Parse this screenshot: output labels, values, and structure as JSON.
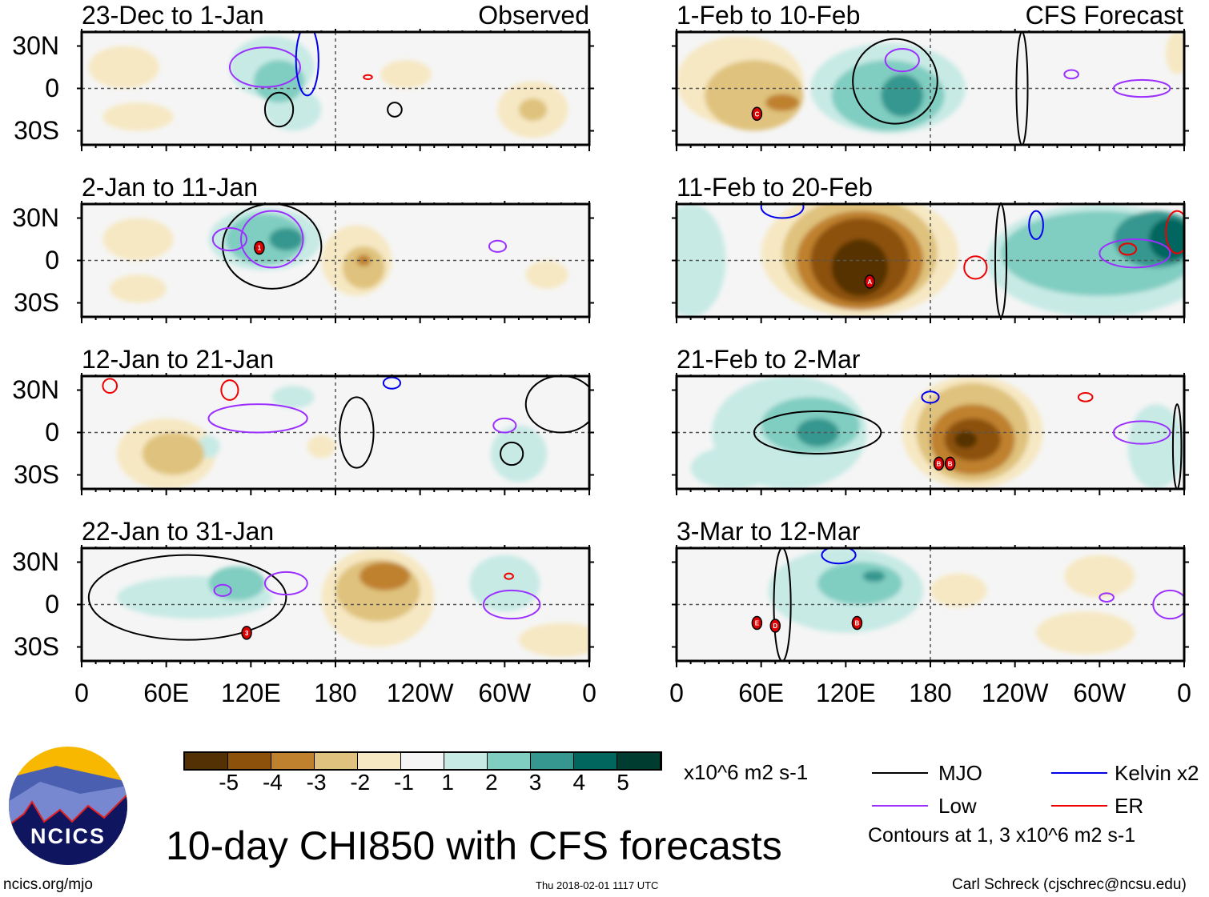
{
  "colors": {
    "levels": [
      "#543005",
      "#8c510a",
      "#bf812d",
      "#dfc27d",
      "#f6e8c3",
      "#f5f5f5",
      "#c7eae5",
      "#80cdc1",
      "#35978f",
      "#01665e",
      "#003c30"
    ],
    "MJO": "#000000",
    "Low": "#9b30ff",
    "Kelvin": "#0000ee",
    "ER": "#ee0000"
  },
  "header": {
    "observed": "Observed",
    "forecast": "CFS Forecast"
  },
  "lat_labels": [
    "30N",
    "0",
    "30S"
  ],
  "lon_labels": [
    "0",
    "60E",
    "120E",
    "180",
    "120W",
    "60W",
    "0"
  ],
  "chart_data": {
    "type": "heatmap",
    "title": "10-day CHI850 with CFS forecasts",
    "units": "x10^6 m2 s-1",
    "colorbar_ticks": [
      "-5",
      "-4",
      "-3",
      "-2",
      "-1",
      "1",
      "2",
      "3",
      "4",
      "5"
    ],
    "xlim": [
      0,
      360
    ],
    "ylim": [
      -40,
      40
    ],
    "panels": [
      {
        "title": "23-Dec to 1-Jan",
        "col": 0,
        "row": 0,
        "blobs": [
          [
            30,
            15,
            25,
            15,
            -1
          ],
          [
            40,
            -20,
            25,
            10,
            -1
          ],
          [
            135,
            15,
            30,
            22,
            1
          ],
          [
            140,
            5,
            18,
            15,
            2
          ],
          [
            150,
            -15,
            20,
            15,
            1
          ],
          [
            230,
            10,
            18,
            10,
            -1
          ],
          [
            320,
            -15,
            25,
            20,
            -1
          ],
          [
            320,
            -15,
            10,
            8,
            -2
          ]
        ],
        "contours": [
          [
            "Low",
            130,
            15,
            25,
            14
          ],
          [
            "Kelvin",
            160,
            20,
            8,
            25
          ],
          [
            "MJO",
            140,
            -15,
            10,
            12
          ],
          [
            "MJO",
            222,
            -15,
            5,
            5
          ],
          [
            "ER",
            203,
            8,
            3,
            1.5
          ]
        ]
      },
      {
        "title": "2-Jan to 11-Jan",
        "col": 0,
        "row": 1,
        "blobs": [
          [
            40,
            15,
            25,
            15,
            -1
          ],
          [
            40,
            -20,
            20,
            10,
            -1
          ],
          [
            130,
            15,
            40,
            22,
            1
          ],
          [
            130,
            15,
            28,
            18,
            2
          ],
          [
            145,
            15,
            12,
            8,
            3
          ],
          [
            195,
            0,
            25,
            25,
            -1
          ],
          [
            200,
            -5,
            15,
            15,
            -2
          ],
          [
            200,
            0,
            5,
            4,
            -3
          ],
          [
            330,
            -10,
            15,
            10,
            -1
          ]
        ],
        "contours": [
          [
            "MJO",
            135,
            10,
            35,
            30
          ],
          [
            "Low",
            105,
            15,
            12,
            8
          ],
          [
            "Low",
            135,
            15,
            22,
            20
          ],
          [
            "Low",
            295,
            10,
            6,
            4
          ]
        ]
      },
      {
        "title": "12-Jan to 21-Jan",
        "col": 0,
        "row": 2,
        "blobs": [
          [
            60,
            -15,
            35,
            25,
            -1
          ],
          [
            65,
            -15,
            22,
            15,
            -2
          ],
          [
            170,
            -10,
            10,
            8,
            -1
          ],
          [
            310,
            -15,
            20,
            20,
            1
          ],
          [
            150,
            25,
            15,
            8,
            1
          ],
          [
            90,
            -10,
            8,
            8,
            1
          ]
        ],
        "contours": [
          [
            "Low",
            125,
            10,
            35,
            10
          ],
          [
            "ER",
            20,
            33,
            5,
            5
          ],
          [
            "ER",
            105,
            30,
            6,
            7
          ],
          [
            "MJO",
            195,
            0,
            12,
            25
          ],
          [
            "Kelvin",
            220,
            35,
            6,
            4
          ],
          [
            "Low",
            300,
            5,
            8,
            5
          ],
          [
            "MJO",
            305,
            -15,
            8,
            8
          ],
          [
            "MJO",
            340,
            20,
            25,
            20
          ]
        ]
      },
      {
        "title": "22-Jan to 31-Jan",
        "col": 0,
        "row": 3,
        "blobs": [
          [
            80,
            5,
            55,
            15,
            1
          ],
          [
            110,
            15,
            20,
            12,
            2
          ],
          [
            210,
            5,
            40,
            35,
            -1
          ],
          [
            210,
            10,
            30,
            22,
            -2
          ],
          [
            215,
            20,
            18,
            10,
            -3
          ],
          [
            300,
            15,
            25,
            20,
            1
          ],
          [
            340,
            -25,
            30,
            12,
            -1
          ]
        ],
        "contours": [
          [
            "MJO",
            75,
            5,
            70,
            30
          ],
          [
            "Low",
            145,
            15,
            15,
            8
          ],
          [
            "Low",
            100,
            10,
            6,
            4
          ],
          [
            "Low",
            305,
            0,
            20,
            10
          ],
          [
            "ER",
            303,
            20,
            3,
            2
          ]
        ]
      },
      {
        "title": "1-Feb to 10-Feb",
        "col": 1,
        "row": 0,
        "blobs": [
          [
            45,
            5,
            45,
            32,
            -1
          ],
          [
            55,
            -5,
            35,
            25,
            -2
          ],
          [
            75,
            -10,
            12,
            6,
            -3
          ],
          [
            150,
            0,
            55,
            32,
            1
          ],
          [
            150,
            -5,
            40,
            25,
            2
          ],
          [
            160,
            -5,
            15,
            15,
            3
          ],
          [
            355,
            25,
            8,
            15,
            -1
          ]
        ],
        "contours": [
          [
            "MJO",
            155,
            5,
            30,
            30
          ],
          [
            "Low",
            160,
            20,
            12,
            8
          ],
          [
            "Low",
            330,
            0,
            20,
            6
          ],
          [
            "Low",
            280,
            10,
            5,
            3
          ],
          [
            "MJO",
            245,
            0,
            4,
            40
          ]
        ]
      },
      {
        "title": "11-Feb to 20-Feb",
        "col": 1,
        "row": 1,
        "blobs": [
          [
            10,
            0,
            25,
            40,
            1
          ],
          [
            130,
            5,
            70,
            45,
            -1
          ],
          [
            130,
            5,
            55,
            40,
            -2
          ],
          [
            130,
            0,
            45,
            35,
            -3
          ],
          [
            130,
            0,
            35,
            30,
            -4
          ],
          [
            130,
            -5,
            20,
            20,
            -5
          ],
          [
            300,
            0,
            80,
            40,
            1
          ],
          [
            300,
            5,
            70,
            30,
            2
          ],
          [
            340,
            15,
            30,
            20,
            3
          ],
          [
            350,
            15,
            15,
            15,
            4
          ]
        ],
        "contours": [
          [
            "MJO",
            230,
            0,
            4,
            40
          ],
          [
            "ER",
            212,
            -5,
            8,
            8
          ],
          [
            "Kelvin",
            255,
            25,
            5,
            10
          ],
          [
            "Kelvin",
            75,
            38,
            15,
            8
          ],
          [
            "Low",
            325,
            5,
            25,
            10
          ],
          [
            "ER",
            320,
            8,
            6,
            4
          ],
          [
            "ER",
            355,
            20,
            8,
            15
          ]
        ]
      },
      {
        "title": "21-Feb to 2-Mar",
        "col": 1,
        "row": 2,
        "blobs": [
          [
            80,
            0,
            55,
            40,
            1
          ],
          [
            95,
            5,
            35,
            20,
            2
          ],
          [
            100,
            0,
            15,
            10,
            3
          ],
          [
            40,
            -25,
            30,
            15,
            1
          ],
          [
            210,
            0,
            50,
            40,
            -1
          ],
          [
            210,
            0,
            40,
            35,
            -2
          ],
          [
            210,
            -5,
            30,
            25,
            -3
          ],
          [
            210,
            -5,
            20,
            15,
            -4
          ],
          [
            205,
            -5,
            8,
            6,
            -5
          ],
          [
            340,
            -10,
            20,
            30,
            1
          ]
        ],
        "contours": [
          [
            "MJO",
            100,
            0,
            45,
            15
          ],
          [
            "Kelvin",
            180,
            25,
            6,
            4
          ],
          [
            "Low",
            330,
            0,
            20,
            8
          ],
          [
            "ER",
            290,
            25,
            5,
            3
          ],
          [
            "MJO",
            355,
            -10,
            3,
            30
          ]
        ]
      },
      {
        "title": "3-Mar to 12-Mar",
        "col": 1,
        "row": 3,
        "blobs": [
          [
            120,
            10,
            55,
            30,
            1
          ],
          [
            130,
            15,
            30,
            15,
            2
          ],
          [
            140,
            20,
            8,
            4,
            3
          ],
          [
            200,
            10,
            20,
            12,
            -1
          ],
          [
            290,
            -20,
            35,
            15,
            -1
          ],
          [
            300,
            20,
            25,
            15,
            -1
          ]
        ],
        "contours": [
          [
            "MJO",
            75,
            0,
            6,
            40
          ],
          [
            "Kelvin",
            115,
            35,
            12,
            6
          ],
          [
            "Low",
            305,
            5,
            5,
            3
          ],
          [
            "Low",
            350,
            0,
            12,
            10
          ]
        ]
      }
    ]
  },
  "storms": [
    {
      "panel": 4,
      "label": "C",
      "lon": 57,
      "lat": -18
    },
    {
      "panel": 1,
      "label": "1",
      "lon": 126,
      "lat": 9
    },
    {
      "panel": 5,
      "label": "A",
      "lon": 137,
      "lat": -15
    },
    {
      "panel": 6,
      "label": "B",
      "lon": 186,
      "lat": -22
    },
    {
      "panel": 6,
      "label": "B",
      "lon": 194,
      "lat": -22
    },
    {
      "panel": 3,
      "label": "3",
      "lon": 117,
      "lat": -20
    },
    {
      "panel": 7,
      "label": "E",
      "lon": 57,
      "lat": -13
    },
    {
      "panel": 7,
      "label": "D",
      "lon": 70,
      "lat": -15
    },
    {
      "panel": 7,
      "label": "B",
      "lon": 128,
      "lat": -13
    }
  ],
  "legend": {
    "units": "x10^6 m2 s-1",
    "mjo": "MJO",
    "low": "Low",
    "kelvin": "Kelvin x2",
    "er": "ER",
    "contours_note": "Contours at 1, 3 x10^6 m2 s-1"
  },
  "footer": {
    "logo_text": "NCICS",
    "url": "ncics.org/mjo",
    "timestamp": "Thu 2018-02-01 1117 UTC",
    "credit": "Carl Schreck (cjschrec@ncsu.edu)"
  }
}
